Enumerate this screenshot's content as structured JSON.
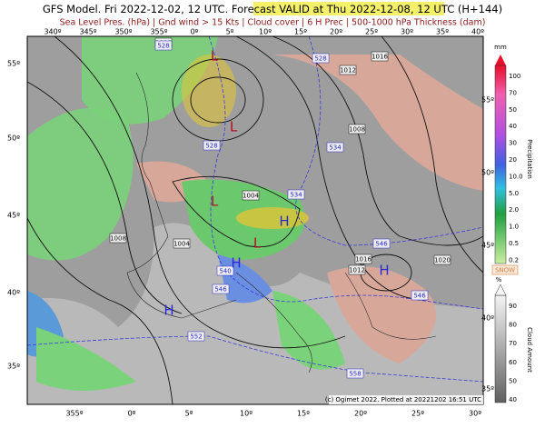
{
  "header": {
    "title_parts": [
      "GFS Model. Fri 2022-12-02, 12 UTC. Forecast VALID at Th",
      "u 2022-12-08, 12 UTC",
      " (H+144)"
    ],
    "subtitle": "Sea Level Pres. (hPa) | Gnd wind > 15 Kts | Cloud cover | 6 H Prec | 500-1000 hPa Thickness (dam)"
  },
  "map": {
    "lon_top": [
      "340º",
      "345º",
      "350º",
      "355º",
      "0º",
      "5º",
      "10º",
      "15º",
      "20º",
      "25º",
      "30º",
      "35º",
      "40º"
    ],
    "lon_bottom": [
      "355º",
      "0º",
      "5º",
      "10º",
      "15º",
      "20º",
      "25º",
      "30º"
    ],
    "lat_left": [
      "55º",
      "50º",
      "45º",
      "40º",
      "35º"
    ],
    "lat_right": [
      "55º",
      "50º",
      "45º",
      "40º",
      "35º"
    ],
    "isobars": [
      "1008",
      "1012",
      "1016",
      "1008",
      "1004",
      "1008",
      "1004",
      "1016",
      "1012",
      "1020"
    ],
    "thickness": [
      "528",
      "528",
      "528",
      "534",
      "534",
      "540",
      "546",
      "546",
      "546",
      "552",
      "558"
    ],
    "highs": [
      "H",
      "H",
      "H",
      "H"
    ],
    "lows": [
      "L",
      "L",
      "L",
      "L"
    ],
    "credit": "(c) Ogimet 2022. Plotted at 20221202 16:51 UTC"
  },
  "legend": {
    "precip_unit": "mm",
    "precip_title": "Precipitation",
    "snow": "SNOW",
    "precip_labels": [
      "100",
      "70",
      "50",
      "40",
      "30",
      "20",
      "10.0",
      "5.0",
      "2.0",
      "1.0",
      "0.5",
      "0.2"
    ],
    "cloud_unit": "%",
    "cloud_title": "Cloud Amount",
    "cloud_labels": [
      "90",
      "80",
      "70",
      "60",
      "50",
      "40"
    ]
  }
}
